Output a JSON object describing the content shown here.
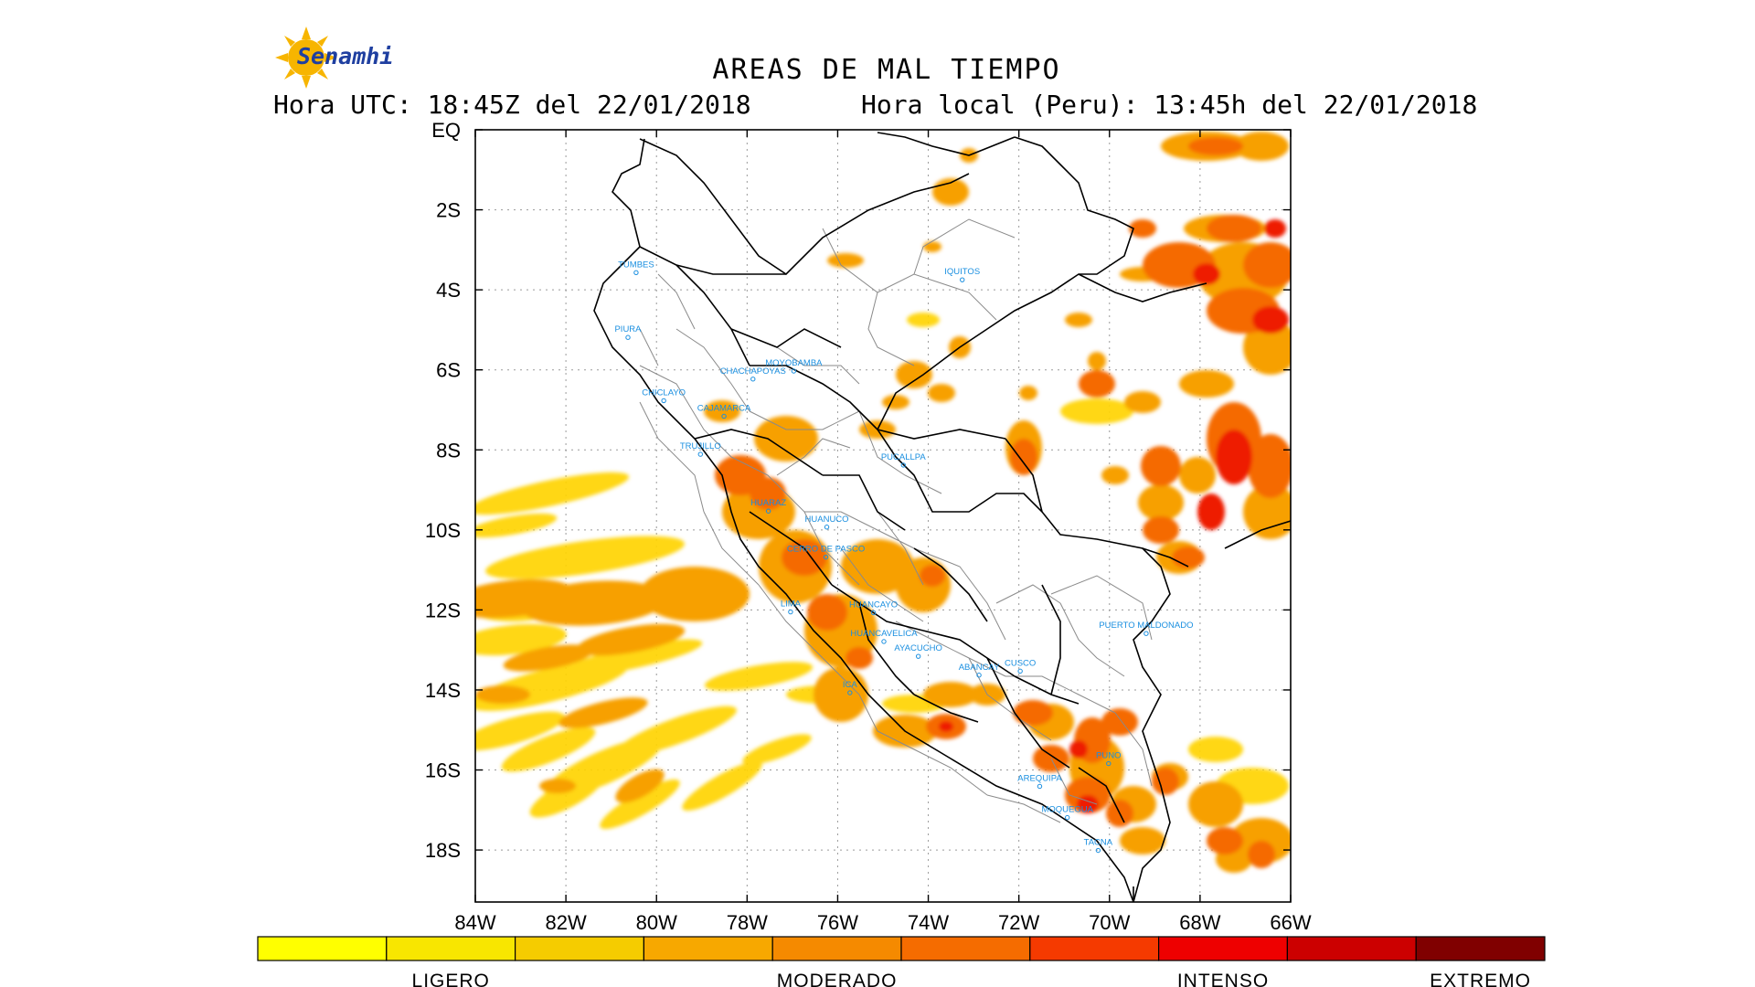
{
  "logo": {
    "brand": "Senamhi"
  },
  "header": {
    "title": "AREAS DE MAL TIEMPO",
    "utc_time": "Hora UTC: 18:45Z del 22/01/2018",
    "local_time": "Hora local (Peru): 13:45h del 22/01/2018"
  },
  "map": {
    "lon_range": [
      -84,
      -66
    ],
    "lat_range": [
      -19.3,
      0
    ],
    "lat_ticks": [
      {
        "value": 0,
        "label": "EQ"
      },
      {
        "value": -2,
        "label": "2S"
      },
      {
        "value": -4,
        "label": "4S"
      },
      {
        "value": -6,
        "label": "6S"
      },
      {
        "value": -8,
        "label": "8S"
      },
      {
        "value": -10,
        "label": "10S"
      },
      {
        "value": -12,
        "label": "12S"
      },
      {
        "value": -14,
        "label": "14S"
      },
      {
        "value": -16,
        "label": "16S"
      },
      {
        "value": -18,
        "label": "18S"
      }
    ],
    "lon_ticks": [
      {
        "value": -84,
        "label": "84W"
      },
      {
        "value": -82,
        "label": "82W"
      },
      {
        "value": -80,
        "label": "80W"
      },
      {
        "value": -78,
        "label": "78W"
      },
      {
        "value": -76,
        "label": "76W"
      },
      {
        "value": -74,
        "label": "74W"
      },
      {
        "value": -72,
        "label": "72W"
      },
      {
        "value": -70,
        "label": "70W"
      },
      {
        "value": -68,
        "label": "68W"
      },
      {
        "value": -66,
        "label": "66W"
      }
    ],
    "cities": [
      {
        "name": "TUMBES",
        "lon": -80.45,
        "lat": -3.57
      },
      {
        "name": "PIURA",
        "lon": -80.63,
        "lat": -5.19
      },
      {
        "name": "CHICLAYO",
        "lon": -79.84,
        "lat": -6.77
      },
      {
        "name": "CHACHAPOYAS",
        "lon": -77.87,
        "lat": -6.23
      },
      {
        "name": "MOYOBAMBA",
        "lon": -76.97,
        "lat": -6.03
      },
      {
        "name": "CAJAMARCA",
        "lon": -78.51,
        "lat": -7.16
      },
      {
        "name": "IQUITOS",
        "lon": -73.25,
        "lat": -3.75
      },
      {
        "name": "TRUJILLO",
        "lon": -79.03,
        "lat": -8.11
      },
      {
        "name": "PUCALLPA",
        "lon": -74.55,
        "lat": -8.38
      },
      {
        "name": "HUARAZ",
        "lon": -77.53,
        "lat": -9.53
      },
      {
        "name": "HUANUCO",
        "lon": -76.24,
        "lat": -9.93
      },
      {
        "name": "CERRO DE PASCO",
        "lon": -76.26,
        "lat": -10.68
      },
      {
        "name": "HUANCAYO",
        "lon": -75.21,
        "lat": -12.07
      },
      {
        "name": "LIMA",
        "lon": -77.04,
        "lat": -12.05
      },
      {
        "name": "HUANCAVELICA",
        "lon": -74.98,
        "lat": -12.79
      },
      {
        "name": "AYACUCHO",
        "lon": -74.22,
        "lat": -13.16
      },
      {
        "name": "CUSCO",
        "lon": -71.97,
        "lat": -13.53
      },
      {
        "name": "PUERTO MALDONADO",
        "lon": -69.19,
        "lat": -12.59
      },
      {
        "name": "ICA",
        "lon": -75.73,
        "lat": -14.07
      },
      {
        "name": "ABANCAY",
        "lon": -72.88,
        "lat": -13.63
      },
      {
        "name": "PUNO",
        "lon": -70.02,
        "lat": -15.84
      },
      {
        "name": "AREQUIPA",
        "lon": -71.54,
        "lat": -16.41
      },
      {
        "name": "MOQUEGUA",
        "lon": -70.93,
        "lat": -17.19
      },
      {
        "name": "TACNA",
        "lon": -70.25,
        "lat": -18.01
      }
    ]
  },
  "legend": {
    "colors": [
      "#ffff00",
      "#f8e600",
      "#f5cc00",
      "#f7a800",
      "#f58a00",
      "#f56c00",
      "#f53a00",
      "#ee0000",
      "#cc0000",
      "#800000"
    ],
    "labels": [
      "LIGERO",
      "MODERADO",
      "INTENSO",
      "EXTREMO"
    ],
    "label_positions": [
      1.5,
      4.5,
      7.5,
      9.5
    ]
  },
  "palette": {
    "ligero": "#ffd400",
    "moderado": "#f7a000",
    "fuerte": "#f56a00",
    "intenso": "#ee1a00",
    "borders": "#000000",
    "provinces": "#8a8a8a",
    "city": "#1a8fe0"
  }
}
